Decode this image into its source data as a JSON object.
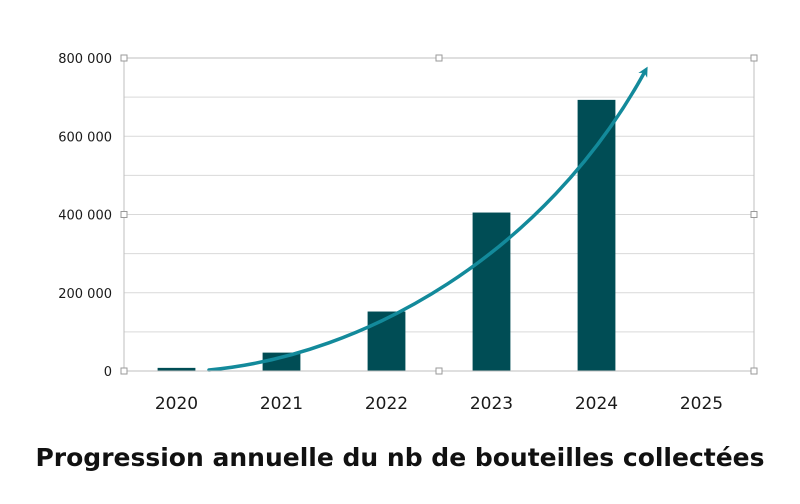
{
  "chart_data": {
    "type": "bar",
    "title": "Progression annuelle du nb de bouteilles collectées",
    "xlabel": "",
    "ylabel": "",
    "categories": [
      "2020",
      "2021",
      "2022",
      "2023",
      "2024",
      "2025"
    ],
    "values": [
      8000,
      47000,
      152000,
      405000,
      693000,
      null
    ],
    "ylim": [
      0,
      800000
    ],
    "yticks": [
      0,
      200000,
      400000,
      600000,
      800000
    ],
    "ytick_labels": [
      "0",
      "200 000",
      "400 000",
      "600 000",
      "800 000"
    ],
    "grid": true,
    "legend": "none",
    "trend_arrow": true,
    "colors": {
      "bar": "#004d55",
      "trend": "#138a9b",
      "grid": "#d9d9d9"
    }
  }
}
